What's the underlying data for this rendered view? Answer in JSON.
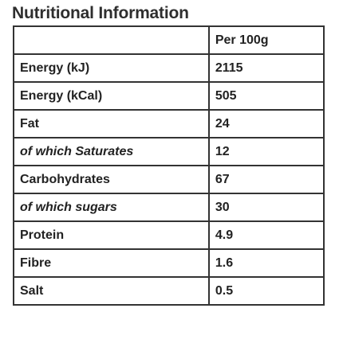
{
  "title": "Nutritional Information",
  "table": {
    "header": {
      "label": "",
      "value": "Per 100g"
    },
    "rows": [
      {
        "label": "Energy (kJ)",
        "value": "2115"
      },
      {
        "label": "Energy (kCal)",
        "value": "505"
      },
      {
        "label": "Fat",
        "value": "24"
      },
      {
        "label": "of which Saturates",
        "value": "12"
      },
      {
        "label": "Carbohydrates",
        "value": "67"
      },
      {
        "label": "of which sugars",
        "value": "30"
      },
      {
        "label": "Protein",
        "value": "4.9"
      },
      {
        "label": "Fibre",
        "value": "1.6"
      },
      {
        "label": "Salt",
        "value": "0.5"
      }
    ]
  }
}
